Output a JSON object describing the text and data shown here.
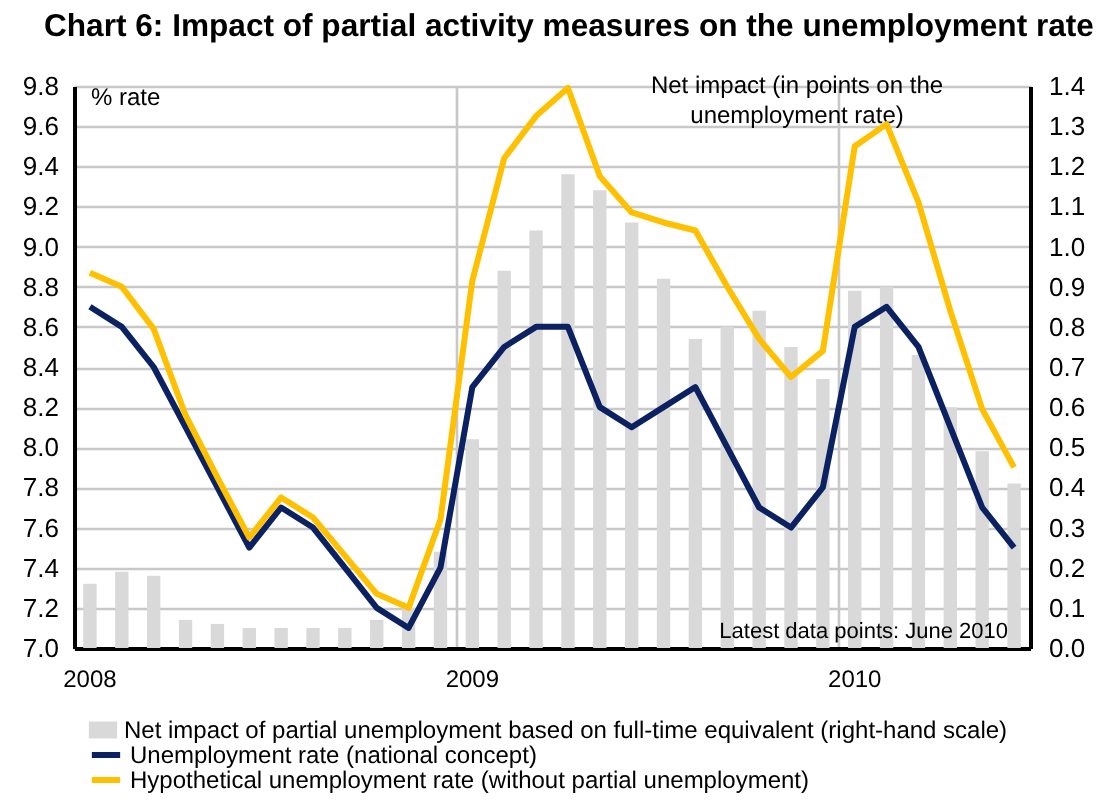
{
  "chart_data": {
    "type": "line",
    "title": "Chart 6: Impact of partial activity measures on the unemployment rate",
    "ylabel": "% rate",
    "y2label": "Net impact  (in points on the unemployment rate)",
    "annotations": [
      "Latest data points: June 2010"
    ],
    "categories": [
      "2008",
      null,
      null,
      null,
      null,
      null,
      null,
      null,
      null,
      null,
      null,
      null,
      "2009",
      null,
      null,
      null,
      null,
      null,
      null,
      null,
      null,
      null,
      null,
      null,
      "2010",
      null,
      null,
      null,
      null,
      null
    ],
    "series": [
      {
        "name": "Net impact of partial unemployment based on full-time equivalent (right-hand scale)",
        "type": "bar",
        "axis": "y2",
        "color": "#d9d9d9",
        "values": [
          0.16,
          0.19,
          0.18,
          0.07,
          0.06,
          0.05,
          0.05,
          0.05,
          0.05,
          0.07,
          0.1,
          0.24,
          0.52,
          0.94,
          1.04,
          1.18,
          1.14,
          1.06,
          0.92,
          0.77,
          0.8,
          0.84,
          0.75,
          0.67,
          0.89,
          0.9,
          0.73,
          0.6,
          0.49,
          0.41
        ]
      },
      {
        "name": "Unemployment rate  (national concept)",
        "color": "#0b2162",
        "values": [
          8.7,
          8.6,
          8.4,
          8.1,
          7.8,
          7.5,
          7.7,
          7.6,
          7.4,
          7.2,
          7.1,
          7.4,
          8.3,
          8.5,
          8.6,
          8.6,
          8.2,
          8.1,
          8.2,
          8.3,
          8.0,
          7.7,
          7.6,
          7.8,
          8.6,
          8.7,
          8.5,
          8.1,
          7.7,
          7.5
        ]
      },
      {
        "name": "Hypothetical unemployment rate (without partial unemployment)",
        "color": "#ffc000",
        "values": [
          8.87,
          8.8,
          8.59,
          8.16,
          7.85,
          7.55,
          7.75,
          7.65,
          7.46,
          7.27,
          7.2,
          7.64,
          8.83,
          9.44,
          9.65,
          9.79,
          9.35,
          9.17,
          9.12,
          9.08,
          8.8,
          8.54,
          8.35,
          8.48,
          9.5,
          9.61,
          9.22,
          8.68,
          8.19,
          7.9
        ]
      }
    ],
    "ylim": [
      7.0,
      9.8
    ],
    "yticks": [
      {
        "value": 7.0,
        "label": "7.0"
      },
      7.2,
      7.4,
      7.6,
      7.8,
      {
        "value": 8.0,
        "label": "8.0"
      },
      8.2,
      8.4,
      8.6,
      8.8,
      {
        "value": 9.0,
        "label": "9.0"
      },
      9.2,
      9.4,
      9.6,
      9.8
    ],
    "y2lim": [
      0,
      1.4
    ],
    "y2ticks": [
      {
        "value": 0,
        "label": "0.0"
      },
      0.1,
      0.2,
      0.3,
      0.4,
      0.5,
      0.6,
      0.7,
      0.8,
      0.9,
      {
        "value": 1,
        "label": "1.0"
      },
      1.1,
      1.2,
      1.3,
      1.4
    ],
    "grid": true,
    "legend": "bottom"
  }
}
